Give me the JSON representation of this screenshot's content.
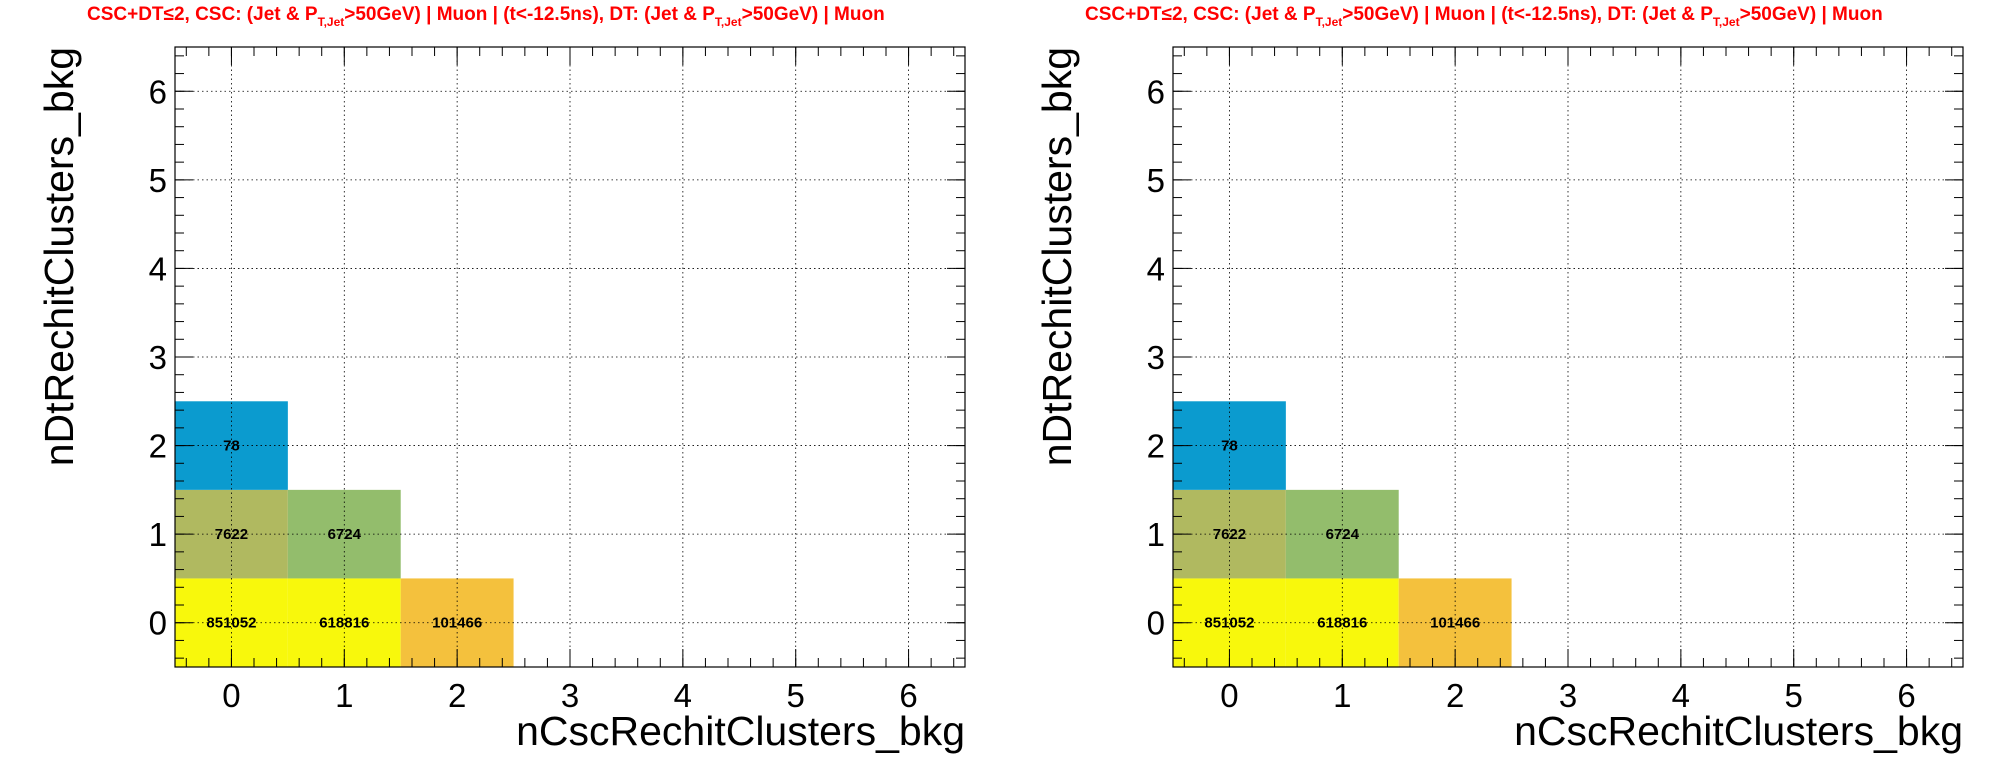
{
  "chart_data": [
    {
      "type": "heatmap",
      "title_parts": [
        "CSC+DT≤2, CSC: (Jet & P",
        "T,Jet",
        ">50GeV) | Muon | (t<-12.5ns), DT: (Jet & P",
        "T,Jet",
        ">50GeV) | Muon"
      ],
      "xlabel": "nCscRechitClusters_bkg",
      "ylabel": "nDtRechitClusters_bkg",
      "xlim": [
        -0.5,
        6.5
      ],
      "ylim": [
        -0.5,
        6.5
      ],
      "x_ticks": [
        0,
        1,
        2,
        3,
        4,
        5,
        6
      ],
      "y_ticks": [
        0,
        1,
        2,
        3,
        4,
        5,
        6
      ],
      "grid": true,
      "cells": [
        {
          "x": 0,
          "y": 0,
          "value": 851052,
          "color": "#f8f80c"
        },
        {
          "x": 1,
          "y": 0,
          "value": 618816,
          "color": "#f8f80c"
        },
        {
          "x": 2,
          "y": 0,
          "value": 101466,
          "color": "#f4c13d"
        },
        {
          "x": 0,
          "y": 1,
          "value": 7622,
          "color": "#b0b960"
        },
        {
          "x": 1,
          "y": 1,
          "value": 6724,
          "color": "#93bd6c"
        },
        {
          "x": 0,
          "y": 2,
          "value": 78,
          "color": "#0b9bcf"
        }
      ]
    },
    {
      "type": "heatmap",
      "title_parts": [
        "CSC+DT≤2, CSC: (Jet & P",
        "T,Jet",
        ">50GeV) | Muon | (t<-12.5ns), DT: (Jet & P",
        "T,Jet",
        ">50GeV) | Muon"
      ],
      "xlabel": "nCscRechitClusters_bkg",
      "ylabel": "nDtRechitClusters_bkg",
      "xlim": [
        -0.5,
        6.5
      ],
      "ylim": [
        -0.5,
        6.5
      ],
      "x_ticks": [
        0,
        1,
        2,
        3,
        4,
        5,
        6
      ],
      "y_ticks": [
        0,
        1,
        2,
        3,
        4,
        5,
        6
      ],
      "grid": true,
      "cells": [
        {
          "x": 0,
          "y": 0,
          "value": 851052,
          "color": "#f8f80c"
        },
        {
          "x": 1,
          "y": 0,
          "value": 618816,
          "color": "#f8f80c"
        },
        {
          "x": 2,
          "y": 0,
          "value": 101466,
          "color": "#f4c13d"
        },
        {
          "x": 0,
          "y": 1,
          "value": 7622,
          "color": "#b0b960"
        },
        {
          "x": 1,
          "y": 1,
          "value": 6724,
          "color": "#93bd6c"
        },
        {
          "x": 0,
          "y": 2,
          "value": 78,
          "color": "#0b9bcf"
        }
      ]
    }
  ]
}
